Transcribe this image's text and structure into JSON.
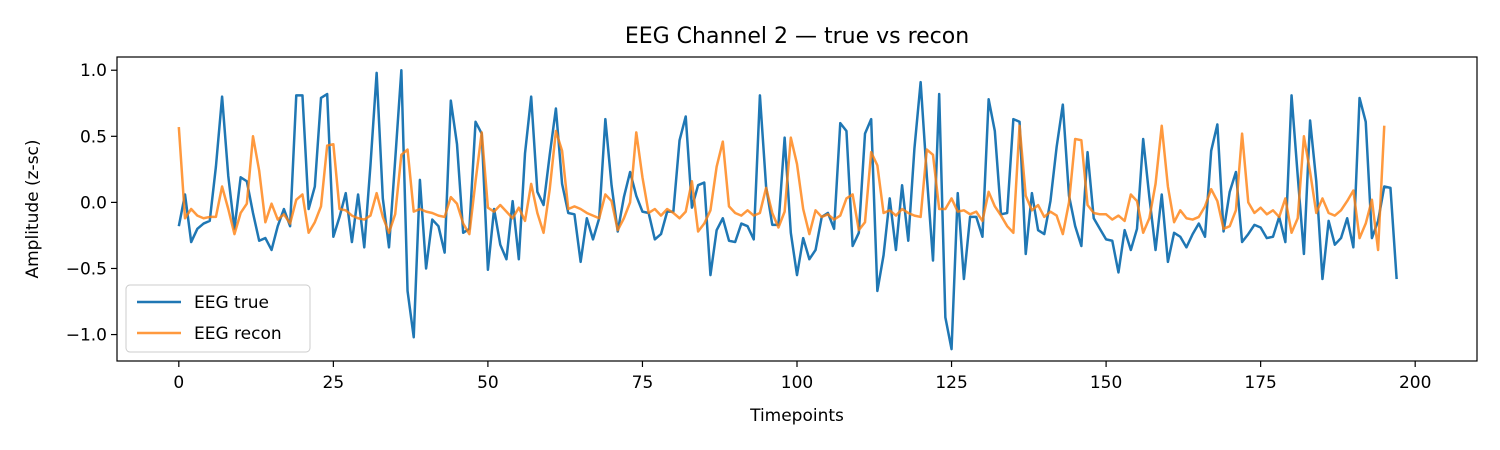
{
  "chart_data": {
    "type": "line",
    "title": "EEG Channel 2 — true vs recon",
    "xlabel": "Timepoints",
    "ylabel": "Amplitude (z-sc)",
    "xlim": [
      -10,
      210
    ],
    "ylim": [
      -1.2,
      1.1
    ],
    "xticks": [
      0,
      25,
      50,
      75,
      100,
      125,
      150,
      175,
      200
    ],
    "xtick_labels": [
      "0",
      "25",
      "50",
      "75",
      "100",
      "125",
      "150",
      "175",
      "200"
    ],
    "yticks": [
      1.0,
      0.5,
      0.0,
      -0.5,
      -1.0
    ],
    "ytick_labels": [
      "1.0",
      "0.5",
      "0.0",
      "−0.5",
      "−1.0"
    ],
    "grid": false,
    "legend_position": "lower-left",
    "series": [
      {
        "name": "EEG true",
        "color": "#1f77b4",
        "x_start": 0,
        "x_step": 1,
        "values": [
          -0.18,
          0.06,
          -0.3,
          -0.2,
          -0.16,
          -0.14,
          0.27,
          0.8,
          0.2,
          -0.2,
          0.19,
          0.16,
          -0.08,
          -0.29,
          -0.27,
          -0.36,
          -0.18,
          -0.05,
          -0.18,
          0.81,
          0.81,
          -0.05,
          0.12,
          0.79,
          0.82,
          -0.26,
          -0.11,
          0.07,
          -0.3,
          0.06,
          -0.34,
          0.28,
          0.98,
          0.03,
          -0.34,
          0.32,
          1.0,
          -0.67,
          -1.02,
          0.17,
          -0.5,
          -0.13,
          -0.18,
          -0.38,
          0.77,
          0.44,
          -0.23,
          -0.2,
          0.61,
          0.52,
          -0.51,
          -0.05,
          -0.32,
          -0.43,
          0.01,
          -0.43,
          0.37,
          0.8,
          0.08,
          -0.02,
          0.36,
          0.71,
          0.14,
          -0.08,
          -0.09,
          -0.45,
          -0.12,
          -0.28,
          -0.12,
          0.63,
          0.13,
          -0.22,
          0.04,
          0.23,
          0.05,
          -0.07,
          -0.08,
          -0.28,
          -0.24,
          -0.07,
          -0.07,
          0.47,
          0.65,
          -0.04,
          0.13,
          0.15,
          -0.55,
          -0.21,
          -0.12,
          -0.29,
          -0.3,
          -0.16,
          -0.18,
          -0.28,
          0.81,
          0.12,
          -0.17,
          -0.17,
          0.49,
          -0.23,
          -0.55,
          -0.27,
          -0.43,
          -0.36,
          -0.11,
          -0.08,
          -0.2,
          0.6,
          0.54,
          -0.33,
          -0.23,
          0.52,
          0.63,
          -0.67,
          -0.4,
          0.03,
          -0.36,
          0.13,
          -0.29,
          0.41,
          0.91,
          0.2,
          -0.44,
          0.82,
          -0.87,
          -1.11,
          0.07,
          -0.58,
          -0.11,
          -0.11,
          -0.26,
          0.78,
          0.54,
          -0.09,
          -0.08,
          0.63,
          0.61,
          -0.39,
          0.07,
          -0.21,
          -0.24,
          0.01,
          0.42,
          0.74,
          0.05,
          -0.18,
          -0.33,
          0.38,
          -0.12,
          -0.2,
          -0.28,
          -0.29,
          -0.53,
          -0.21,
          -0.36,
          -0.2,
          0.48,
          0.04,
          -0.36,
          0.06,
          -0.45,
          -0.23,
          -0.26,
          -0.34,
          -0.24,
          -0.16,
          -0.26,
          0.39,
          0.59,
          -0.22,
          0.08,
          0.23,
          -0.3,
          -0.24,
          -0.17,
          -0.19,
          -0.27,
          -0.26,
          -0.11,
          -0.3,
          0.81,
          0.2,
          -0.39,
          0.62,
          0.16,
          -0.58,
          -0.14,
          -0.32,
          -0.27,
          -0.12,
          -0.34,
          0.79,
          0.61,
          -0.27,
          -0.14,
          0.12,
          0.11,
          -0.58
        ]
      },
      {
        "name": "EEG recon",
        "color": "#ff7f0e",
        "x_start": 0,
        "x_step": 1,
        "values": [
          0.57,
          -0.12,
          -0.05,
          -0.1,
          -0.12,
          -0.11,
          -0.11,
          0.12,
          -0.05,
          -0.24,
          -0.08,
          -0.01,
          0.5,
          0.24,
          -0.15,
          -0.01,
          -0.13,
          -0.09,
          -0.16,
          0.02,
          0.06,
          -0.23,
          -0.15,
          -0.03,
          0.43,
          0.44,
          -0.05,
          -0.06,
          -0.1,
          -0.12,
          -0.13,
          -0.1,
          0.07,
          -0.11,
          -0.23,
          -0.09,
          0.36,
          0.4,
          -0.07,
          -0.05,
          -0.07,
          -0.08,
          -0.1,
          -0.11,
          0.04,
          -0.01,
          -0.16,
          -0.24,
          0.16,
          0.53,
          -0.04,
          -0.07,
          -0.02,
          -0.07,
          -0.12,
          -0.04,
          -0.14,
          0.14,
          -0.08,
          -0.23,
          0.1,
          0.54,
          0.39,
          -0.05,
          -0.03,
          -0.05,
          -0.08,
          -0.1,
          -0.12,
          0.06,
          0.01,
          -0.21,
          -0.12,
          0.0,
          0.53,
          0.19,
          -0.08,
          -0.05,
          -0.1,
          -0.05,
          -0.08,
          -0.12,
          -0.07,
          0.16,
          -0.22,
          -0.16,
          -0.06,
          0.27,
          0.46,
          -0.03,
          -0.08,
          -0.1,
          -0.06,
          -0.1,
          -0.08,
          0.11,
          -0.08,
          -0.19,
          -0.07,
          0.49,
          0.29,
          -0.05,
          -0.24,
          -0.06,
          -0.11,
          -0.09,
          -0.13,
          -0.1,
          0.03,
          0.06,
          -0.21,
          -0.15,
          0.38,
          0.28,
          -0.08,
          -0.06,
          -0.1,
          -0.05,
          -0.08,
          -0.1,
          -0.11,
          0.4,
          0.36,
          -0.05,
          -0.05,
          0.03,
          -0.07,
          -0.06,
          -0.09,
          -0.07,
          -0.14,
          0.08,
          -0.03,
          -0.1,
          -0.18,
          -0.23,
          0.58,
          0.05,
          -0.06,
          -0.02,
          -0.11,
          -0.07,
          -0.1,
          -0.24,
          0.0,
          0.48,
          0.47,
          -0.02,
          -0.08,
          -0.09,
          -0.09,
          -0.13,
          -0.1,
          -0.14,
          0.06,
          0.01,
          -0.23,
          -0.12,
          0.14,
          0.58,
          0.12,
          -0.15,
          -0.06,
          -0.12,
          -0.13,
          -0.11,
          -0.03,
          0.1,
          0.01,
          -0.2,
          -0.18,
          -0.06,
          0.52,
          0.0,
          -0.08,
          -0.04,
          -0.09,
          -0.06,
          -0.11,
          0.03,
          -0.23,
          -0.12,
          0.5,
          0.23,
          -0.08,
          0.03,
          -0.08,
          -0.1,
          -0.06,
          0.01,
          0.09,
          -0.27,
          -0.16,
          0.02,
          -0.36,
          0.58
        ]
      }
    ]
  }
}
